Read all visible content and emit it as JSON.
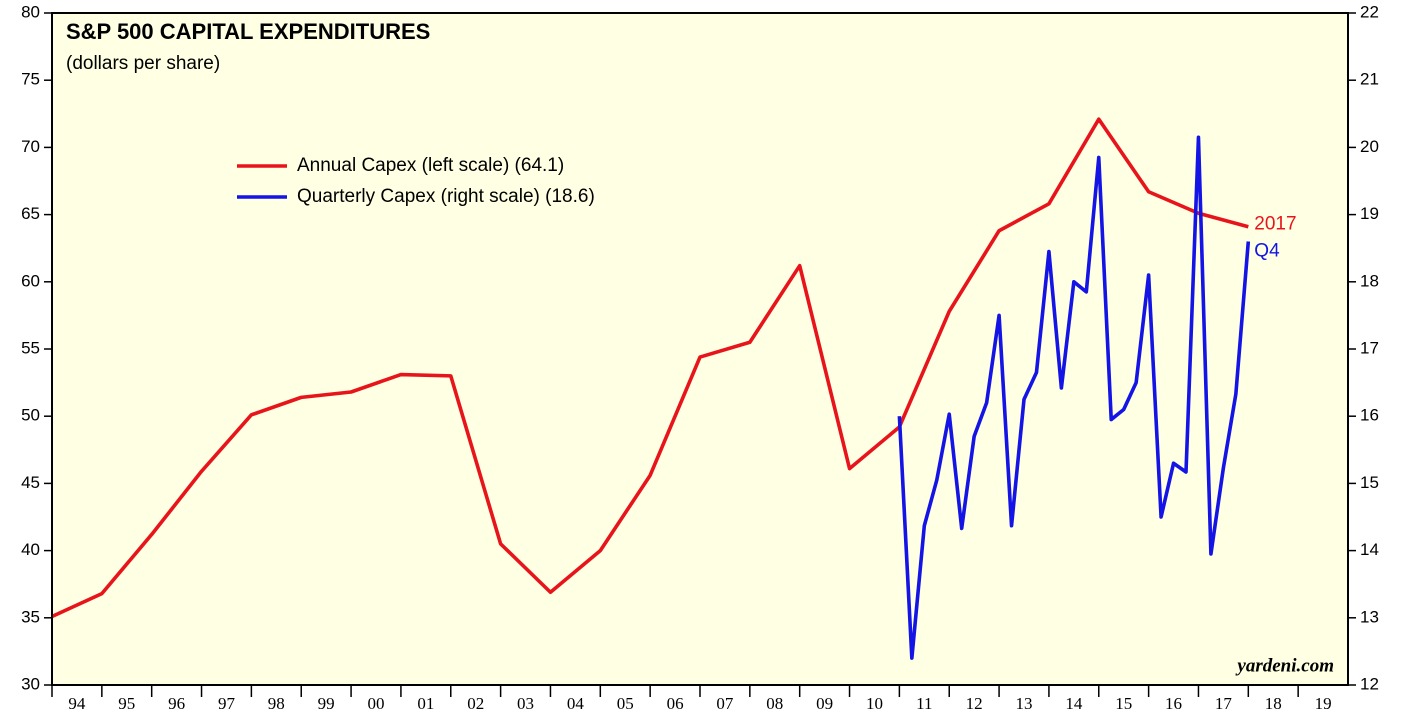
{
  "chart_data": {
    "type": "line",
    "title": "S&P 500 CAPITAL EXPENDITURES",
    "subtitle": "(dollars per share)",
    "source": "yardeni.com",
    "annotations": [
      "2017",
      "Q4"
    ],
    "legend": "upper left",
    "xlim": [
      1994,
      2020
    ],
    "xticks": [
      {
        "value": 1994.5,
        "label": "94"
      },
      {
        "value": 1995.5,
        "label": "95"
      },
      {
        "value": 1996.5,
        "label": "96"
      },
      {
        "value": 1997.5,
        "label": "97"
      },
      {
        "value": 1998.5,
        "label": "98"
      },
      {
        "value": 1999.5,
        "label": "99"
      },
      {
        "value": 2000.5,
        "label": "00"
      },
      {
        "value": 2001.5,
        "label": "01"
      },
      {
        "value": 2002.5,
        "label": "02"
      },
      {
        "value": 2003.5,
        "label": "03"
      },
      {
        "value": 2004.5,
        "label": "04"
      },
      {
        "value": 2005.5,
        "label": "05"
      },
      {
        "value": 2006.5,
        "label": "06"
      },
      {
        "value": 2007.5,
        "label": "07"
      },
      {
        "value": 2008.5,
        "label": "08"
      },
      {
        "value": 2009.5,
        "label": "09"
      },
      {
        "value": 2010.5,
        "label": "10"
      },
      {
        "value": 2011.5,
        "label": "11"
      },
      {
        "value": 2012.5,
        "label": "12"
      },
      {
        "value": 2013.5,
        "label": "13"
      },
      {
        "value": 2014.5,
        "label": "14"
      },
      {
        "value": 2015.5,
        "label": "15"
      },
      {
        "value": 2016.5,
        "label": "16"
      },
      {
        "value": 2017.5,
        "label": "17"
      },
      {
        "value": 2018.5,
        "label": "18"
      },
      {
        "value": 2019.5,
        "label": "19"
      }
    ],
    "ylim": [
      30,
      80
    ],
    "yticks": [
      30,
      35,
      40,
      45,
      50,
      55,
      60,
      65,
      70,
      75,
      80
    ],
    "y2lim": [
      12,
      22
    ],
    "y2ticks": [
      12,
      13,
      14,
      15,
      16,
      17,
      18,
      19,
      20,
      21,
      22
    ],
    "series": [
      {
        "name": "Annual Capex (left scale) (64.1)",
        "color": "#e8141c",
        "axis": "y",
        "x": [
          1994,
          1995,
          1996,
          1997,
          1998,
          1999,
          2000,
          2001,
          2002,
          2003,
          2004,
          2005,
          2006,
          2007,
          2008,
          2009,
          2010,
          2011,
          2012,
          2013,
          2014,
          2015,
          2016,
          2017,
          2018
        ],
        "values": [
          35.1,
          36.8,
          41.2,
          45.9,
          50.1,
          51.4,
          51.8,
          53.1,
          53.0,
          40.5,
          36.9,
          40.0,
          45.6,
          54.4,
          55.5,
          61.2,
          46.1,
          49.2,
          57.8,
          63.8,
          65.8,
          72.1,
          66.7,
          65.1,
          64.1
        ]
      },
      {
        "name": "Quarterly Capex (right scale) (18.6)",
        "color": "#1414e6",
        "axis": "y2",
        "x": [
          2011,
          2011.25,
          2011.5,
          2011.75,
          2012,
          2012.25,
          2012.5,
          2012.75,
          2013,
          2013.25,
          2013.5,
          2013.75,
          2014,
          2014.25,
          2014.5,
          2014.75,
          2015,
          2015.25,
          2015.5,
          2015.75,
          2016,
          2016.25,
          2016.5,
          2016.75,
          2017,
          2017.25,
          2017.5,
          2017.75,
          2018
        ],
        "values": [
          16.0,
          12.4,
          14.37,
          15.05,
          16.03,
          14.33,
          15.7,
          16.2,
          17.5,
          14.37,
          16.25,
          16.65,
          18.45,
          16.42,
          18.0,
          17.85,
          19.85,
          15.95,
          16.1,
          16.5,
          18.1,
          14.5,
          15.3,
          15.17,
          20.15,
          13.95,
          15.23,
          16.33,
          18.6
        ]
      }
    ]
  }
}
